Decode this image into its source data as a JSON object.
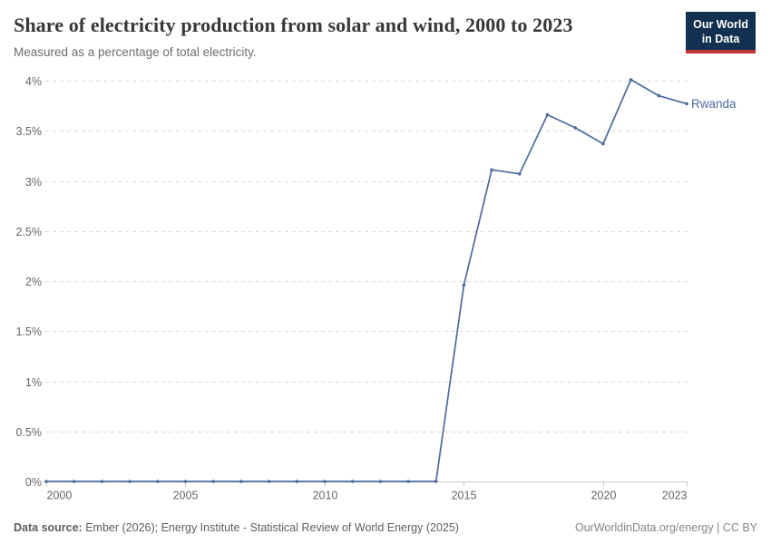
{
  "header": {
    "title": "Share of electricity production from solar and wind, 2000 to 2023",
    "subtitle": "Measured as a percentage of total electricity.",
    "logo": {
      "line1": "Our World",
      "line2": "in Data",
      "bg_color": "#12304F",
      "accent_color": "#C0343C"
    }
  },
  "chart_data": {
    "type": "line",
    "title": "Share of electricity production from solar and wind, 2000 to 2023",
    "xlabel": "",
    "ylabel": "",
    "xlim": [
      2000,
      2023
    ],
    "ylim": [
      0,
      4
    ],
    "grid": "horizontal-dashed",
    "legend_position": "end-of-line-label",
    "x_ticks": [
      2000,
      2005,
      2010,
      2015,
      2020,
      2023
    ],
    "y_ticks": [
      0,
      0.5,
      1,
      1.5,
      2,
      2.5,
      3,
      3.5,
      4
    ],
    "y_tick_suffix": "%",
    "x": [
      2000,
      2001,
      2002,
      2003,
      2004,
      2005,
      2006,
      2007,
      2008,
      2009,
      2010,
      2011,
      2012,
      2013,
      2014,
      2015,
      2016,
      2017,
      2018,
      2019,
      2020,
      2021,
      2022,
      2023
    ],
    "series": [
      {
        "name": "Rwanda",
        "color": "#4C6A9C",
        "values": [
          0,
          0,
          0,
          0,
          0,
          0,
          0,
          0,
          0,
          0,
          0,
          0,
          0,
          0,
          0,
          1.96,
          3.11,
          3.07,
          3.66,
          3.53,
          3.37,
          4.01,
          3.85,
          3.77
        ]
      }
    ],
    "colors": {
      "gridline": "#dadada",
      "axis_line": "#c8c8c8",
      "tick_text": "#666666"
    }
  },
  "footer": {
    "datasource_label": "Data source:",
    "datasource_text": "Ember (2026); Energy Institute - Statistical Review of World Energy (2025)",
    "credit": "OurWorldinData.org/energy | CC BY"
  }
}
